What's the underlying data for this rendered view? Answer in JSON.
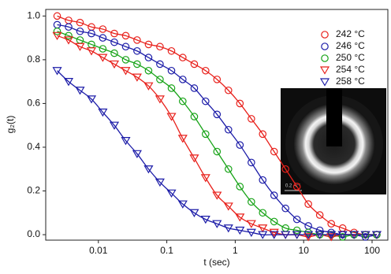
{
  "chart_data": {
    "type": "scatter",
    "x_label": "t (sec)",
    "y_label": "g₂(t)",
    "xscale": "log",
    "xlim": [
      0.0017,
      170
    ],
    "ylim": [
      -0.025,
      1.03
    ],
    "xticks": [
      0.01,
      0.1,
      1,
      10,
      100
    ],
    "yticks": [
      {
        "value": 0,
        "label": "0.0"
      },
      0.2,
      0.4,
      0.6,
      0.8,
      {
        "value": 1,
        "label": "1.0"
      }
    ],
    "legend": "top-right",
    "inset_scale_label": "0.2 Å⁻¹",
    "x": [
      0.0025,
      0.00367,
      0.00539,
      0.00792,
      0.0116,
      0.0171,
      0.0251,
      0.0368,
      0.0541,
      0.0794,
      0.117,
      0.171,
      0.252,
      0.369,
      0.542,
      0.796,
      1.17,
      1.72,
      2.52,
      3.7,
      5.43,
      7.98,
      11.7,
      17.2,
      25.3,
      37.1,
      54.5,
      80.0,
      117
    ],
    "series": [
      {
        "name": "242 °C",
        "color": "#e8201b",
        "marker": "circle",
        "values": [
          1.0,
          0.98,
          0.97,
          0.95,
          0.94,
          0.92,
          0.91,
          0.89,
          0.87,
          0.86,
          0.84,
          0.81,
          0.78,
          0.75,
          0.71,
          0.66,
          0.6,
          0.53,
          0.46,
          0.38,
          0.3,
          0.22,
          0.14,
          0.09,
          0.05,
          0.03,
          0.01,
          0.0,
          0.0
        ]
      },
      {
        "name": "246 °C",
        "color": "#1c1ca8",
        "marker": "circle",
        "values": [
          0.96,
          0.95,
          0.93,
          0.92,
          0.9,
          0.88,
          0.86,
          0.84,
          0.81,
          0.78,
          0.75,
          0.71,
          0.67,
          0.61,
          0.55,
          0.48,
          0.41,
          0.33,
          0.25,
          0.18,
          0.12,
          0.07,
          0.04,
          0.02,
          0.01,
          0.0,
          0.0,
          -0.01,
          0.0
        ]
      },
      {
        "name": "250 °C",
        "color": "#17a317",
        "marker": "circle",
        "values": [
          0.93,
          0.91,
          0.89,
          0.87,
          0.85,
          0.83,
          0.8,
          0.78,
          0.75,
          0.71,
          0.67,
          0.61,
          0.54,
          0.46,
          0.38,
          0.3,
          0.22,
          0.15,
          0.1,
          0.06,
          0.03,
          0.02,
          0.01,
          0.0,
          0.0,
          -0.01,
          0.0,
          0.0,
          0.0
        ]
      },
      {
        "name": "254 °C",
        "color": "#e8201b",
        "marker": "triangle-down",
        "values": [
          0.91,
          0.89,
          0.86,
          0.84,
          0.81,
          0.78,
          0.75,
          0.72,
          0.68,
          0.62,
          0.54,
          0.44,
          0.35,
          0.26,
          0.18,
          0.13,
          0.08,
          0.05,
          0.03,
          0.01,
          0.0,
          0.0,
          -0.01,
          0.0,
          -0.01,
          0.0,
          0.0,
          0.0,
          0.0
        ]
      },
      {
        "name": "258 °C",
        "color": "#1c1ca8",
        "marker": "triangle-down",
        "values": [
          0.75,
          0.7,
          0.66,
          0.62,
          0.56,
          0.5,
          0.43,
          0.37,
          0.3,
          0.24,
          0.19,
          0.14,
          0.1,
          0.07,
          0.05,
          0.03,
          0.02,
          0.01,
          0.0,
          0.0,
          0.0,
          0.0,
          0.0,
          0.0,
          0.0,
          0.0,
          0.0,
          0.0,
          0.0
        ]
      }
    ]
  }
}
